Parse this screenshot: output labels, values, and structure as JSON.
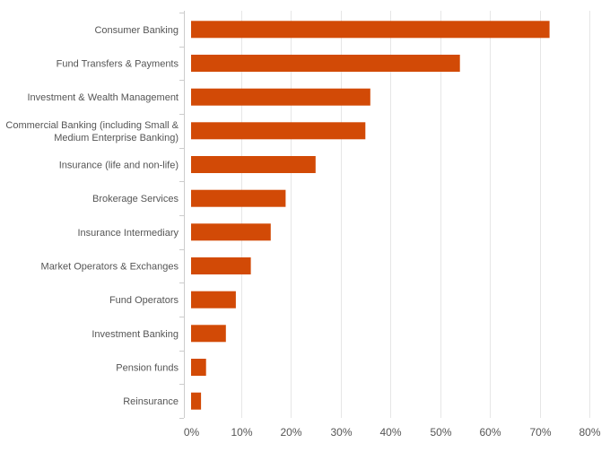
{
  "chart_data": {
    "type": "bar",
    "orientation": "horizontal",
    "title": "",
    "xlabel": "",
    "ylabel": "",
    "xlim": [
      0,
      80
    ],
    "x_ticks": [
      0,
      10,
      20,
      30,
      40,
      50,
      60,
      70,
      80
    ],
    "x_tick_labels": [
      "0%",
      "10%",
      "20%",
      "30%",
      "40%",
      "50%",
      "60%",
      "70%",
      "80%"
    ],
    "grid": true,
    "legend": "none",
    "bar_color": "#d24a06",
    "categories": [
      [
        "Consumer Banking"
      ],
      [
        "Fund Transfers & Payments"
      ],
      [
        "Investment & Wealth Management"
      ],
      [
        "Commercial Banking (including Small &",
        "Medium Enterprise Banking)"
      ],
      [
        "Insurance (life and non-life)"
      ],
      [
        "Brokerage Services"
      ],
      [
        "Insurance Intermediary"
      ],
      [
        "Market Operators & Exchanges"
      ],
      [
        "Fund Operators"
      ],
      [
        "Investment Banking"
      ],
      [
        "Pension funds"
      ],
      [
        "Reinsurance"
      ]
    ],
    "values": [
      72,
      54,
      36,
      35,
      25,
      19,
      16,
      12,
      9,
      7,
      3,
      2
    ]
  }
}
